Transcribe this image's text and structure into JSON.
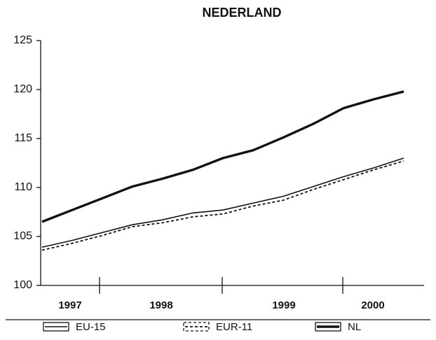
{
  "chart_data": {
    "type": "line",
    "title": "NEDERLAND",
    "categories": [
      null,
      null,
      null,
      null,
      null,
      null,
      null,
      null,
      null,
      null,
      null,
      null,
      null
    ],
    "year_labels": [
      "1997",
      "1998",
      "1999",
      "2000"
    ],
    "ylim": [
      100,
      125
    ],
    "yticks": [
      100,
      105,
      110,
      115,
      120,
      125
    ],
    "legend": "bottom",
    "series": [
      {
        "name": "EU-15",
        "color": "#111111",
        "style": "solid",
        "values": [
          103.9,
          104.6,
          105.4,
          106.2,
          106.7,
          107.4,
          107.7,
          108.4,
          109.1,
          110.1,
          111.1,
          112.0,
          113.0
        ]
      },
      {
        "name": "EUR-11",
        "color": "#111111",
        "style": "dashed",
        "values": [
          103.6,
          104.3,
          105.1,
          106.0,
          106.4,
          107.0,
          107.3,
          108.1,
          108.7,
          109.8,
          110.8,
          111.8,
          112.7
        ]
      },
      {
        "name": "NL",
        "color": "#111111",
        "style": "thick",
        "values": [
          106.5,
          107.7,
          108.9,
          110.1,
          110.9,
          111.8,
          113.0,
          113.8,
          115.1,
          116.5,
          118.1,
          119.0,
          119.8
        ]
      }
    ]
  }
}
